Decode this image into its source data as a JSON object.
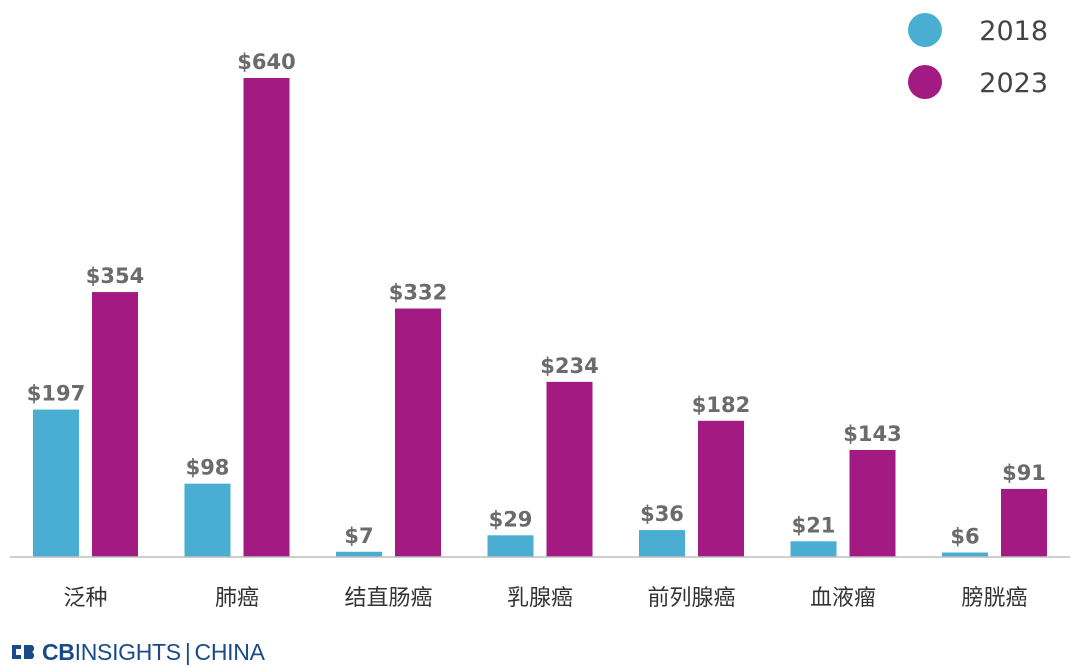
{
  "chart_data": {
    "type": "bar",
    "title": "",
    "xlabel": "",
    "ylabel": "",
    "categories": [
      "泛种",
      "肺癌",
      "结直肠癌",
      "乳腺癌",
      "前列腺癌",
      "血液瘤",
      "膀胱癌"
    ],
    "series": [
      {
        "name": "2018",
        "color": "#4aaed3",
        "values": [
          197,
          98,
          7,
          29,
          36,
          21,
          6
        ],
        "labels": [
          "$197",
          "$98",
          "$7",
          "$29",
          "$36",
          "$21",
          "$6"
        ]
      },
      {
        "name": "2023",
        "color": "#a31a82",
        "values": [
          354,
          640,
          332,
          234,
          182,
          143,
          91
        ],
        "labels": [
          "$354",
          "$640",
          "$332",
          "$234",
          "$182",
          "$143",
          "$91"
        ]
      }
    ],
    "ylim": [
      0,
      640
    ],
    "grid": false,
    "legend": "top-right"
  },
  "branding": {
    "logo_bold": "CB",
    "logo_rest": "INSIGHTS",
    "logo_sep": "|",
    "logo_suffix": "CHINA",
    "logo_color": "#1a4a8a"
  }
}
